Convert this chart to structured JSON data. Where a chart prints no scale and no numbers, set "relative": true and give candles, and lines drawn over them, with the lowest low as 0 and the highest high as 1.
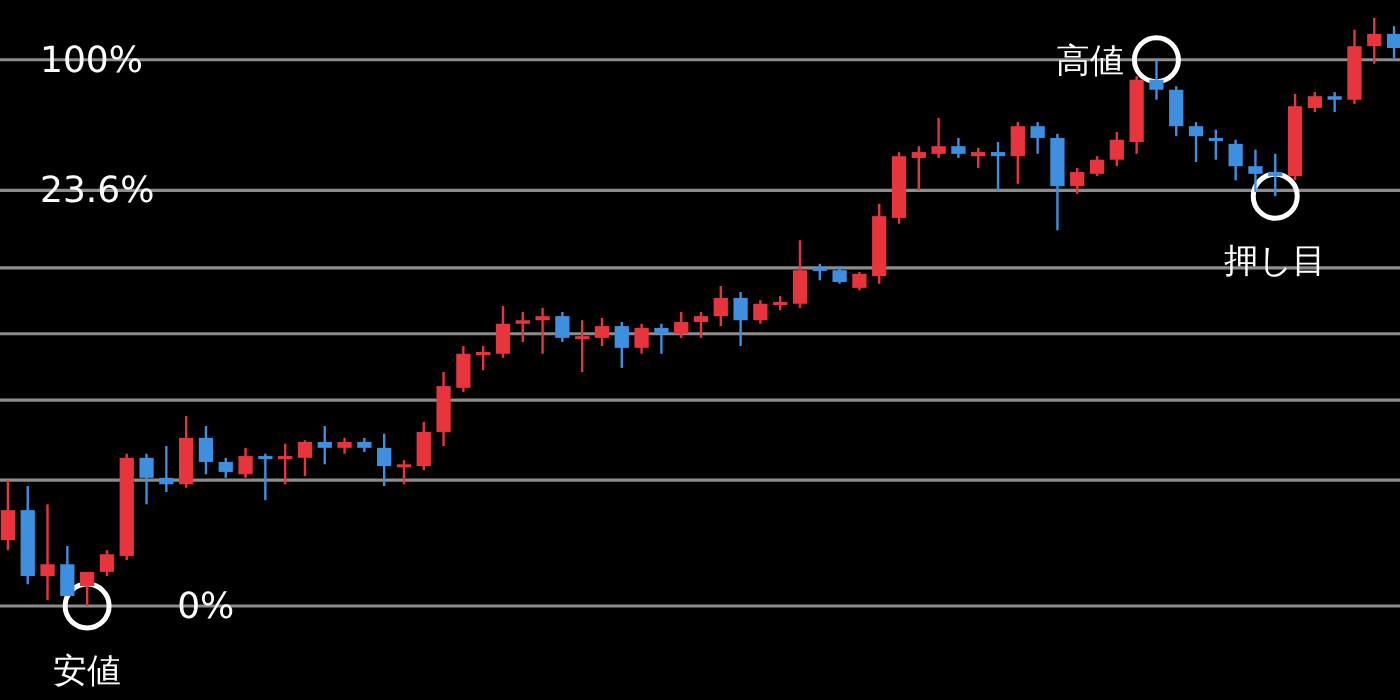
{
  "chart_data": {
    "type": "candlestick",
    "relative": true,
    "categories": [
      null,
      null,
      null,
      null,
      null,
      null,
      null,
      null,
      null,
      null,
      null,
      null,
      null,
      null,
      null,
      null,
      null,
      null,
      null,
      null,
      null,
      null,
      null,
      null,
      null,
      null,
      null,
      null,
      null,
      null,
      null,
      null,
      null,
      null,
      null,
      null,
      null,
      null,
      null,
      null,
      null,
      null,
      null,
      null,
      null,
      null,
      null,
      null,
      null,
      null,
      null,
      null,
      null,
      null,
      null,
      null,
      null,
      null,
      null,
      null,
      null,
      null,
      null,
      null,
      null,
      null,
      null,
      null,
      null,
      null,
      null
    ],
    "ohlc": [
      [
        0.112,
        0.214,
        0.095,
        0.163
      ],
      [
        0.163,
        0.204,
        0.037,
        0.051
      ],
      [
        0.051,
        0.173,
        0.01,
        0.071
      ],
      [
        0.071,
        0.102,
        0.017,
        0.017
      ],
      [
        0.034,
        0.058,
        0,
        0.058
      ],
      [
        0.058,
        0.095,
        0.051,
        0.088
      ],
      [
        0.085,
        0.259,
        0.078,
        0.252
      ],
      [
        0.252,
        0.259,
        0.173,
        0.218
      ],
      [
        0.218,
        0.272,
        0.194,
        0.207
      ],
      [
        0.207,
        0.323,
        0.201,
        0.286
      ],
      [
        0.286,
        0.306,
        0.224,
        0.245
      ],
      [
        0.245,
        0.252,
        0.218,
        0.228
      ],
      [
        0.224,
        0.269,
        0.218,
        0.255
      ],
      [
        0.255,
        0.259,
        0.18,
        0.252
      ],
      [
        0.252,
        0.276,
        0.207,
        0.255
      ],
      [
        0.252,
        0.282,
        0.221,
        0.279
      ],
      [
        0.279,
        0.306,
        0.241,
        0.269
      ],
      [
        0.269,
        0.286,
        0.259,
        0.279
      ],
      [
        0.279,
        0.286,
        0.262,
        0.269
      ],
      [
        0.269,
        0.293,
        0.204,
        0.238
      ],
      [
        0.238,
        0.248,
        0.207,
        0.241
      ],
      [
        0.238,
        0.313,
        0.231,
        0.296
      ],
      [
        0.296,
        0.398,
        0.272,
        0.374
      ],
      [
        0.371,
        0.442,
        0.364,
        0.429
      ],
      [
        0.429,
        0.442,
        0.401,
        0.432
      ],
      [
        0.429,
        0.51,
        0.422,
        0.48
      ],
      [
        0.48,
        0.5,
        0.449,
        0.486
      ],
      [
        0.486,
        0.507,
        0.429,
        0.493
      ],
      [
        0.493,
        0.5,
        0.449,
        0.456
      ],
      [
        0.456,
        0.486,
        0.398,
        0.459
      ],
      [
        0.456,
        0.49,
        0.442,
        0.476
      ],
      [
        0.476,
        0.483,
        0.405,
        0.439
      ],
      [
        0.439,
        0.48,
        0.429,
        0.473
      ],
      [
        0.473,
        0.48,
        0.429,
        0.463
      ],
      [
        0.463,
        0.5,
        0.456,
        0.483
      ],
      [
        0.483,
        0.5,
        0.456,
        0.493
      ],
      [
        0.493,
        0.544,
        0.476,
        0.524
      ],
      [
        0.524,
        0.534,
        0.442,
        0.486
      ],
      [
        0.486,
        0.52,
        0.48,
        0.514
      ],
      [
        0.514,
        0.527,
        0.503,
        0.517
      ],
      [
        0.514,
        0.622,
        0.507,
        0.571
      ],
      [
        0.571,
        0.582,
        0.554,
        0.575
      ],
      [
        0.571,
        0.578,
        0.548,
        0.551
      ],
      [
        0.541,
        0.568,
        0.537,
        0.565
      ],
      [
        0.561,
        0.684,
        0.548,
        0.663
      ],
      [
        0.66,
        0.772,
        0.65,
        0.765
      ],
      [
        0.762,
        0.782,
        0.707,
        0.772
      ],
      [
        0.769,
        0.83,
        0.762,
        0.782
      ],
      [
        0.782,
        0.796,
        0.762,
        0.769
      ],
      [
        0.765,
        0.779,
        0.745,
        0.772
      ],
      [
        0.772,
        0.789,
        0.704,
        0.765
      ],
      [
        0.765,
        0.823,
        0.718,
        0.816
      ],
      [
        0.816,
        0.823,
        0.769,
        0.796
      ],
      [
        0.796,
        0.803,
        0.639,
        0.714
      ],
      [
        0.714,
        0.745,
        0.701,
        0.738
      ],
      [
        0.735,
        0.765,
        0.731,
        0.759
      ],
      [
        0.759,
        0.806,
        0.748,
        0.793
      ],
      [
        0.789,
        0.901,
        0.769,
        0.895
      ],
      [
        0.895,
        0.929,
        0.861,
        0.878
      ],
      [
        0.878,
        0.884,
        0.799,
        0.816
      ],
      [
        0.816,
        0.823,
        0.755,
        0.799
      ],
      [
        0.796,
        0.81,
        0.759,
        0.793
      ],
      [
        0.786,
        0.793,
        0.724,
        0.748
      ],
      [
        0.748,
        0.776,
        0.704,
        0.735
      ],
      [
        0.738,
        0.769,
        0.697,
        0.731
      ],
      [
        0.731,
        0.871,
        0.724,
        0.85
      ],
      [
        0.847,
        0.874,
        0.84,
        0.867
      ],
      [
        0.867,
        0.874,
        0.84,
        0.861
      ],
      [
        0.861,
        0.98,
        0.854,
        0.952
      ],
      [
        0.952,
        1,
        0.922,
        0.973
      ],
      [
        0.973,
        0.986,
        0.932,
        0.949
      ]
    ],
    "colors": [
      "#e8343c",
      "#3f8fe0",
      "#e8343c",
      "#3f8fe0",
      "#e8343c",
      "#e8343c",
      "#e8343c",
      "#3f8fe0",
      "#3f8fe0",
      "#e8343c",
      "#3f8fe0",
      "#3f8fe0",
      "#e8343c",
      "#3f8fe0",
      "#e8343c",
      "#e8343c",
      "#3f8fe0",
      "#e8343c",
      "#3f8fe0",
      "#3f8fe0",
      "#e8343c",
      "#e8343c",
      "#e8343c",
      "#e8343c",
      "#e8343c",
      "#e8343c",
      "#e8343c",
      "#e8343c",
      "#3f8fe0",
      "#e8343c",
      "#e8343c",
      "#3f8fe0",
      "#e8343c",
      "#3f8fe0",
      "#e8343c",
      "#e8343c",
      "#e8343c",
      "#3f8fe0",
      "#e8343c",
      "#e8343c",
      "#e8343c",
      "#3f8fe0",
      "#3f8fe0",
      "#e8343c",
      "#e8343c",
      "#e8343c",
      "#e8343c",
      "#e8343c",
      "#3f8fe0",
      "#e8343c",
      "#3f8fe0",
      "#e8343c",
      "#3f8fe0",
      "#3f8fe0",
      "#e8343c",
      "#e8343c",
      "#e8343c",
      "#e8343c",
      "#3f8fe0",
      "#3f8fe0",
      "#3f8fe0",
      "#3f8fe0",
      "#3f8fe0",
      "#3f8fe0",
      "#3f8fe0",
      "#e8343c",
      "#e8343c",
      "#3f8fe0",
      "#e8343c",
      "#e8343c",
      "#3f8fe0"
    ],
    "ref_lines": [
      {
        "axis": "y",
        "value": 0.929
      },
      {
        "axis": "y",
        "value": 0.707
      },
      {
        "axis": "y",
        "value": 0.575
      },
      {
        "axis": "y",
        "value": 0.463
      },
      {
        "axis": "y",
        "value": 0.35
      },
      {
        "axis": "y",
        "value": 0.214
      },
      {
        "axis": "y",
        "value": 0
      }
    ],
    "annotations": [
      {
        "text": "100%",
        "y": 0.929
      },
      {
        "text": "23.6%",
        "y": 0.707
      },
      {
        "text": "0%",
        "y": 0
      },
      {
        "text": "高値",
        "y": 0.929
      },
      {
        "text": "安値",
        "y": 0
      },
      {
        "text": "押し目",
        "y": 0.697
      }
    ]
  }
}
